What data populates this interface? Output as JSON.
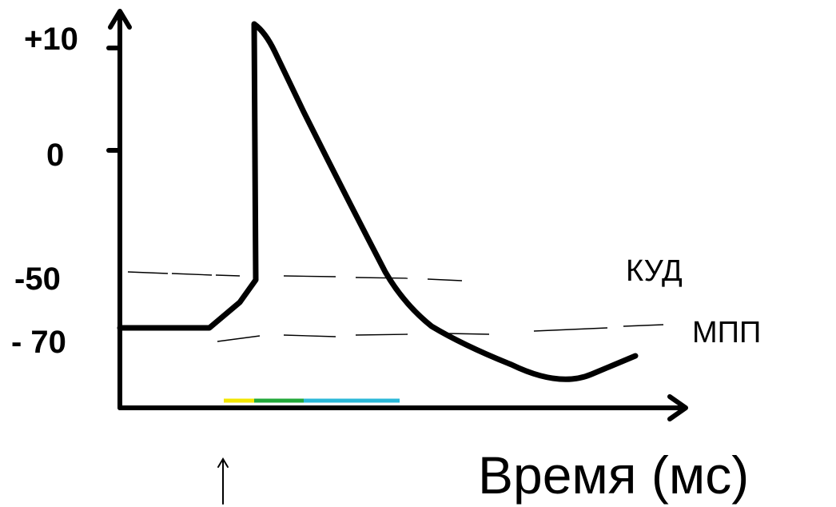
{
  "axis": {
    "y_ticks": [
      {
        "key": "plus10",
        "label": "+10",
        "value": 10
      },
      {
        "key": "zero",
        "label": "0",
        "value": 0
      },
      {
        "key": "minus50",
        "label": "-50",
        "value": -50
      },
      {
        "key": "minus70",
        "label": "- 70",
        "value": -70
      }
    ],
    "x_label": "Время (мс)"
  },
  "levels": {
    "threshold_label": "КУД",
    "resting_label": "МПП"
  },
  "colors": {
    "curve": "#000000",
    "axes": "#000000",
    "dashed": "#000000",
    "baseline_highlight": [
      "#f2e600",
      "#22a83a",
      "#2bb8d8"
    ]
  },
  "annotations": {
    "stimulus_marker": "up-arrow"
  }
}
